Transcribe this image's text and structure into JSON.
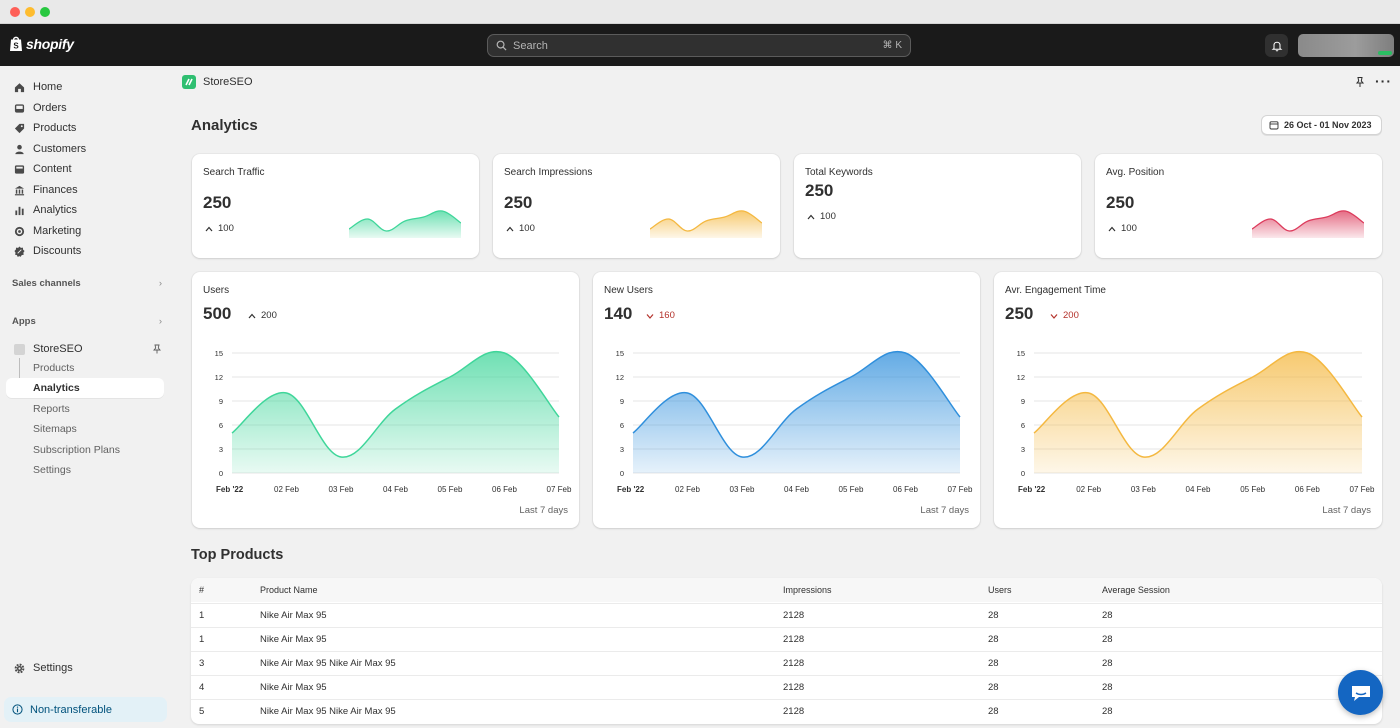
{
  "topbar": {
    "brand": "shopify",
    "search_placeholder": "Search",
    "search_shortcut": "⌘ K"
  },
  "sidebar": {
    "items": [
      {
        "label": "Home",
        "icon": "home-icon"
      },
      {
        "label": "Orders",
        "icon": "inbox-icon"
      },
      {
        "label": "Products",
        "icon": "tag-icon"
      },
      {
        "label": "Customers",
        "icon": "person-icon"
      },
      {
        "label": "Content",
        "icon": "image-icon"
      },
      {
        "label": "Finances",
        "icon": "bank-icon"
      },
      {
        "label": "Analytics",
        "icon": "bar-chart-icon"
      },
      {
        "label": "Marketing",
        "icon": "target-icon"
      },
      {
        "label": "Discounts",
        "icon": "discount-icon"
      }
    ],
    "sales_channels": "Sales channels",
    "apps": "Apps",
    "app_name": "StoreSEO",
    "app_sub_items": [
      "Products",
      "Analytics",
      "Reports",
      "Sitemaps",
      "Subscription Plans",
      "Settings"
    ],
    "settings": "Settings",
    "non_transferable": "Non-transferable"
  },
  "app_header": {
    "name": "StoreSEO"
  },
  "page": {
    "title": "Analytics",
    "date_range": "26 Oct - 01 Nov 2023"
  },
  "colors": {
    "green": "#3fd69a",
    "yellow": "#f4b840",
    "red": "#dc3b5c",
    "blue": "#2f8fdc"
  },
  "metrics": [
    {
      "title": "Search Traffic",
      "value": "250",
      "delta": "100",
      "direction": "up",
      "spark": "green"
    },
    {
      "title": "Search Impressions",
      "value": "250",
      "delta": "100",
      "direction": "up",
      "spark": "yellow"
    },
    {
      "title": "Total Keywords",
      "value": "250",
      "delta": "100",
      "direction": "up",
      "spark": null
    },
    {
      "title": "Avg. Position",
      "value": "250",
      "delta": "100",
      "direction": "up",
      "spark": "red"
    }
  ],
  "spark_values": [
    3,
    8,
    2,
    7,
    9,
    12,
    6
  ],
  "charts": [
    {
      "title": "Users",
      "value": "500",
      "delta": "200",
      "direction": "up",
      "color": "green",
      "footer": "Last 7 days"
    },
    {
      "title": "New Users",
      "value": "140",
      "delta": "160",
      "direction": "down",
      "color": "blue",
      "footer": "Last 7 days"
    },
    {
      "title": "Avr. Engagement Time",
      "value": "250",
      "delta": "200",
      "direction": "down",
      "color": "yellow",
      "footer": "Last 7 days"
    }
  ],
  "chart_data": {
    "type": "area",
    "x": [
      "Feb '22",
      "02 Feb",
      "03 Feb",
      "04 Feb",
      "05 Feb",
      "06 Feb",
      "07 Feb"
    ],
    "y_ticks": [
      0,
      3,
      6,
      9,
      12,
      15
    ],
    "ylim": [
      0,
      15
    ],
    "series": [
      {
        "values": [
          5,
          10,
          2,
          8,
          12,
          15,
          7
        ]
      }
    ]
  },
  "top_products": {
    "title": "Top Products",
    "columns": [
      "#",
      "Product Name",
      "Impressions",
      "Users",
      "Average Session"
    ],
    "rows": [
      [
        "1",
        "Nike Air Max 95",
        "2128",
        "28",
        "28"
      ],
      [
        "1",
        "Nike Air Max 95",
        "2128",
        "28",
        "28"
      ],
      [
        "3",
        "Nike Air Max 95 Nike Air Max 95",
        "2128",
        "28",
        "28"
      ],
      [
        "4",
        "Nike Air Max 95",
        "2128",
        "28",
        "28"
      ],
      [
        "5",
        "Nike Air Max 95 Nike Air Max 95",
        "2128",
        "28",
        "28"
      ]
    ]
  }
}
